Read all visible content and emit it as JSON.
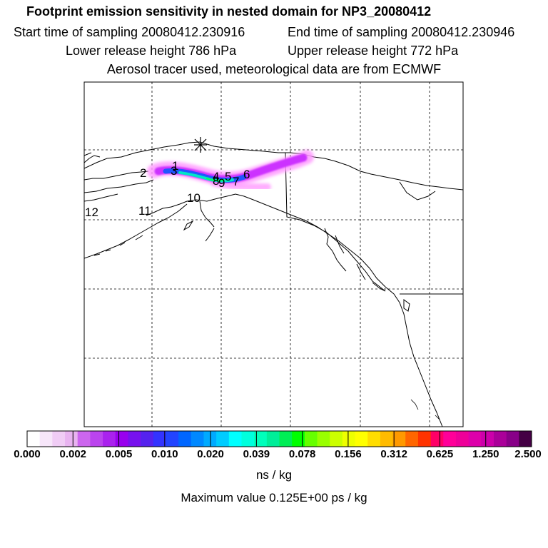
{
  "header": {
    "title": "Footprint emission sensitivity in nested domain for NP3_20080412",
    "start_time": "Start time of sampling 20080412.230916",
    "end_time": "End time of sampling 20080412.230946",
    "lower_height": "Lower release height  786 hPa",
    "upper_height": "Upper release height  772 hPa",
    "tracer_info": "Aerosol tracer used, meteorological data are from ECMWF"
  },
  "map": {
    "point_labels": [
      "2",
      "3",
      "1",
      "4",
      "5",
      "6",
      "8",
      "9",
      "7",
      "10",
      "12",
      "11"
    ],
    "plume_colors": [
      "#ff99ff",
      "#cc33ff",
      "#8a2be2",
      "#2255ff",
      "#00aaff",
      "#00e5c8",
      "#00ff66"
    ]
  },
  "colorbar": {
    "colors": [
      "#ffffff",
      "#f7e6fa",
      "#f0ccf5",
      "#e8b3f0",
      "#cc66ee",
      "#bb44ee",
      "#aa22ee",
      "#9900ee",
      "#7711ee",
      "#5522ee",
      "#3333ff",
      "#2244ff",
      "#0066ff",
      "#0088ff",
      "#00aaff",
      "#00ccff",
      "#00ffff",
      "#00ffdd",
      "#00ffbb",
      "#00ee99",
      "#00ee55",
      "#00ff00",
      "#66ff00",
      "#99ff00",
      "#ccff00",
      "#eeff00",
      "#ffff00",
      "#ffdd00",
      "#ffbb00",
      "#ff9900",
      "#ff6600",
      "#ff3300",
      "#ff0066",
      "#ff0099",
      "#ee0099",
      "#dd00aa",
      "#cc00aa",
      "#aa0099",
      "#880088",
      "#440044"
    ],
    "tick_labels": [
      "0.000",
      "0.002",
      "0.005",
      "0.010",
      "0.020",
      "0.039",
      "0.078",
      "0.156",
      "0.312",
      "0.625",
      "1.250",
      "2.500"
    ],
    "units": "ns / kg",
    "max_value": "Maximum value  0.125E+00 ps / kg"
  }
}
